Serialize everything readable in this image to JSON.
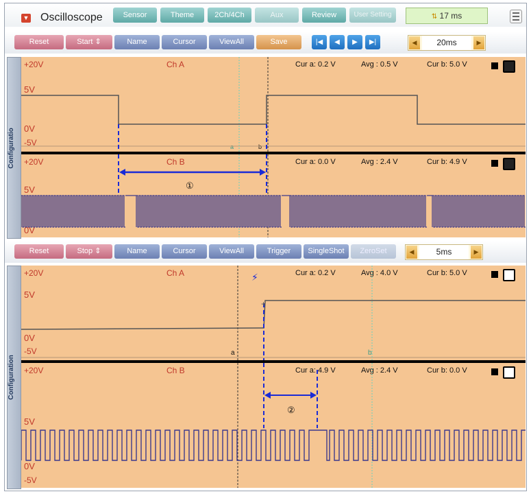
{
  "app": {
    "icon": "dropdown-arrow-icon",
    "title": "Oscilloscope"
  },
  "tabs": [
    {
      "label": "Sensor",
      "enabled": true
    },
    {
      "label": "Theme",
      "enabled": true
    },
    {
      "label": "2Ch/4Ch",
      "enabled": true
    },
    {
      "label": "Aux",
      "enabled": false
    },
    {
      "label": "Review",
      "enabled": true
    },
    {
      "label": "User Setting",
      "enabled": false
    }
  ],
  "fps": {
    "icon": "speed-icon",
    "value": "17 ms"
  },
  "panel_top": {
    "toolbar": {
      "reset": "Reset",
      "start": "Start",
      "name": "Name",
      "cursor": "Cursor",
      "viewall": "ViewAll",
      "save": "Save",
      "nav": [
        "|◀",
        "◀",
        "▶",
        "▶|"
      ],
      "timebase": "20ms"
    },
    "side_label": "Configuratio",
    "ch_a": {
      "range": "+20V",
      "name": "Ch A",
      "cur_a": "Cur a: 0.2 V",
      "avg": "Avg  : 0.5 V",
      "cur_b": "Cur b: 5.0 V",
      "y5": "5V",
      "y0": "0V",
      "yn5": "-5V",
      "marker_a": "a",
      "marker_b": "b"
    },
    "ch_b": {
      "range": "+20V",
      "name": "Ch B",
      "cur_a": "Cur a: 0.0 V",
      "avg": "Avg  : 2.4 V",
      "cur_b": "Cur b: 4.9 V",
      "y5": "5V",
      "y0": "0V",
      "annotation": "①"
    }
  },
  "panel_bottom": {
    "toolbar": {
      "reset": "Reset",
      "stop": "Stop",
      "name": "Name",
      "cursor": "Cursor",
      "viewall": "ViewAll",
      "trigger": "Trigger",
      "singleshot": "SingleShot",
      "zeroset": "ZeroSet",
      "timebase": "5ms"
    },
    "side_label": "Configuration",
    "ch_a": {
      "range": "+20V",
      "name": "Ch A",
      "cur_a": "Cur a: 0.2 V",
      "avg": "Avg  : 4.0 V",
      "cur_b": "Cur b: 5.0 V",
      "y5": "5V",
      "y0": "0V",
      "yn5": "-5V",
      "marker_a": "a",
      "marker_b": "b"
    },
    "ch_b": {
      "range": "+20V",
      "name": "Ch B",
      "cur_a": "Cur a: 4.9 V",
      "avg": "Avg  : 2.4 V",
      "cur_b": "Cur b: 0.0 V",
      "y5": "5V",
      "y0": "0V",
      "yn5": "-5V",
      "annotation": "②"
    }
  },
  "colors": {
    "plot_bg": "#f5c592",
    "trace_a": "#555555",
    "trace_b": "#3d3a8c",
    "cursor_blue": "#1a2bd6",
    "grid": "#b89878"
  }
}
